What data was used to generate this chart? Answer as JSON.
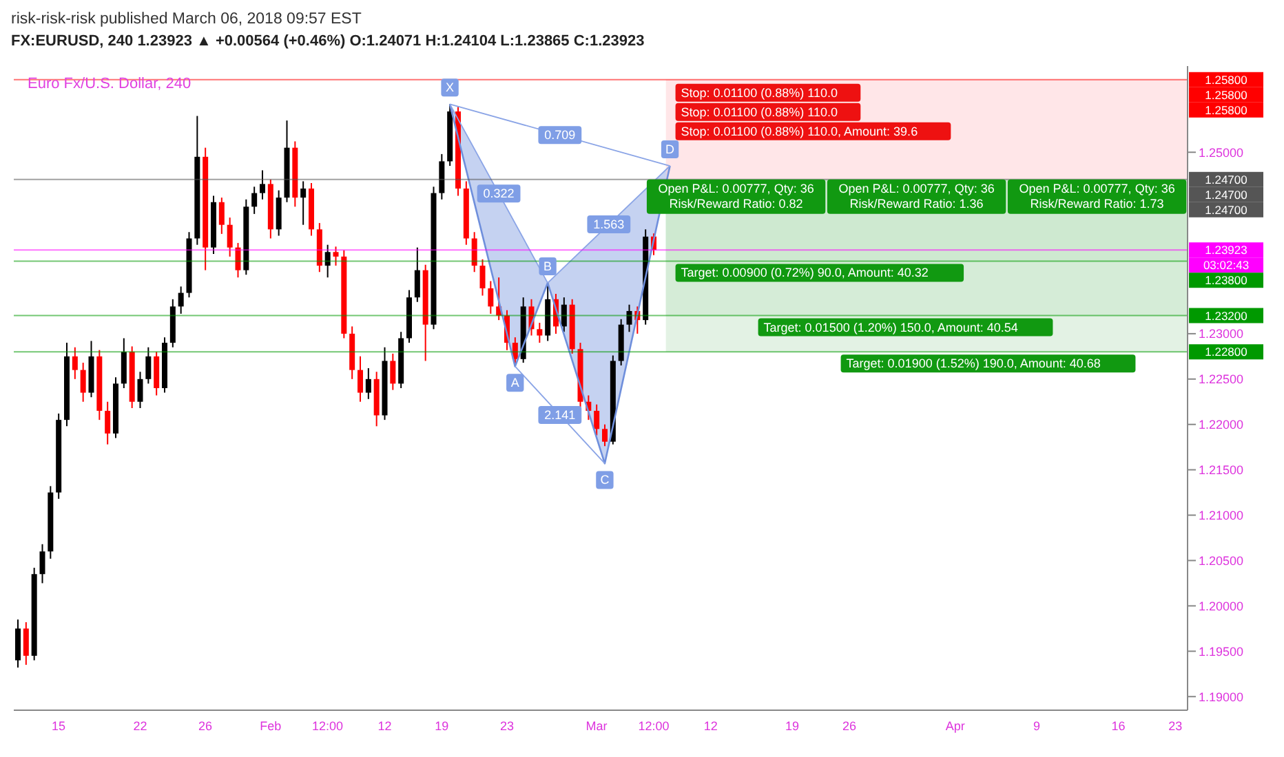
{
  "chart_data": {
    "type": "candlestick",
    "title": "risk-risk-risk published March 06, 2018 09:57 EST",
    "subtitle": "FX:EURUSD, 240 1.23923 ▲ +0.00564 (+0.46%) O:1.24071 H:1.24104 L:1.23865 C:1.23923",
    "categories": [
      null,
      null,
      null,
      null,
      null,
      "15",
      null,
      null,
      null,
      null,
      null,
      null,
      null,
      null,
      null,
      "22",
      null,
      null,
      null,
      null,
      null,
      null,
      null,
      "26",
      null,
      null,
      null,
      null,
      null,
      null,
      null,
      "Feb",
      null,
      null,
      null,
      null,
      null,
      null,
      "12:00",
      null,
      null,
      null,
      null,
      null,
      null,
      "12",
      null,
      null,
      null,
      null,
      null,
      null,
      "19",
      null,
      null,
      null,
      null,
      null,
      null,
      null,
      "23",
      null,
      null,
      null,
      null,
      null,
      null,
      null,
      null,
      null,
      null,
      "Mar",
      null,
      null,
      null,
      null,
      null,
      null,
      "12:00",
      null,
      null,
      null,
      null,
      null,
      null,
      "12",
      null,
      null,
      null,
      null,
      null,
      null,
      null,
      null,
      null,
      "19",
      null,
      null,
      null,
      null,
      null,
      null,
      "26",
      null,
      null,
      null,
      null,
      null,
      null,
      null,
      null,
      null,
      null,
      null,
      null,
      "Apr",
      null,
      null,
      null,
      null,
      null,
      null,
      null,
      null,
      null,
      "9",
      null,
      null,
      null,
      null,
      null,
      null,
      null,
      null,
      null,
      "16",
      null,
      null,
      null,
      null,
      null,
      null,
      "23",
      null
    ],
    "ohlc": [
      [
        1.194,
        1.1985,
        1.1932,
        1.1975
      ],
      [
        1.1975,
        1.1982,
        1.1935,
        1.1945
      ],
      [
        1.1945,
        1.2042,
        1.194,
        1.2035
      ],
      [
        1.2035,
        1.2068,
        1.2025,
        1.206
      ],
      [
        1.206,
        1.2132,
        1.2052,
        1.2125
      ],
      [
        1.2125,
        1.2212,
        1.2118,
        1.2205
      ],
      [
        1.2205,
        1.229,
        1.2198,
        1.2275
      ],
      [
        1.2275,
        1.2285,
        1.225,
        1.226
      ],
      [
        1.226,
        1.2268,
        1.2225,
        1.2235
      ],
      [
        1.2235,
        1.2292,
        1.223,
        1.2275
      ],
      [
        1.2275,
        1.2282,
        1.2205,
        1.2215
      ],
      [
        1.2215,
        1.2225,
        1.2178,
        1.219
      ],
      [
        1.219,
        1.2252,
        1.2185,
        1.2245
      ],
      [
        1.2245,
        1.2295,
        1.224,
        1.228
      ],
      [
        1.228,
        1.2286,
        1.2218,
        1.2225
      ],
      [
        1.2225,
        1.2258,
        1.2218,
        1.225
      ],
      [
        1.225,
        1.2285,
        1.2245,
        1.2275
      ],
      [
        1.2275,
        1.228,
        1.2232,
        1.224
      ],
      [
        1.224,
        1.2296,
        1.2235,
        1.229
      ],
      [
        1.229,
        1.2338,
        1.2285,
        1.233
      ],
      [
        1.233,
        1.2352,
        1.2322,
        1.2345
      ],
      [
        1.2345,
        1.2412,
        1.234,
        1.2405
      ],
      [
        1.2405,
        1.254,
        1.2398,
        1.2495
      ],
      [
        1.2495,
        1.2505,
        1.237,
        1.2395
      ],
      [
        1.2395,
        1.2452,
        1.2388,
        1.2445
      ],
      [
        1.2445,
        1.245,
        1.241,
        1.242
      ],
      [
        1.242,
        1.2428,
        1.2385,
        1.2395
      ],
      [
        1.2395,
        1.24,
        1.2362,
        1.237
      ],
      [
        1.237,
        1.2448,
        1.2365,
        1.244
      ],
      [
        1.244,
        1.2462,
        1.2432,
        1.2455
      ],
      [
        1.2455,
        1.248,
        1.2448,
        1.2465
      ],
      [
        1.2465,
        1.247,
        1.2405,
        1.2415
      ],
      [
        1.2415,
        1.2458,
        1.2408,
        1.245
      ],
      [
        1.245,
        1.2535,
        1.2445,
        1.2505
      ],
      [
        1.2505,
        1.2512,
        1.244,
        1.245
      ],
      [
        1.245,
        1.2468,
        1.242,
        1.246
      ],
      [
        1.246,
        1.2466,
        1.2408,
        1.2415
      ],
      [
        1.2415,
        1.2422,
        1.2368,
        1.2375
      ],
      [
        1.2375,
        1.2398,
        1.2362,
        1.239
      ],
      [
        1.239,
        1.2396,
        1.2375,
        1.2385
      ],
      [
        1.2385,
        1.2392,
        1.2295,
        1.23
      ],
      [
        1.23,
        1.2308,
        1.225,
        1.226
      ],
      [
        1.226,
        1.2275,
        1.2225,
        1.2235
      ],
      [
        1.2235,
        1.2262,
        1.2228,
        1.225
      ],
      [
        1.225,
        1.2258,
        1.2198,
        1.221
      ],
      [
        1.221,
        1.2285,
        1.2205,
        1.227
      ],
      [
        1.227,
        1.2278,
        1.2238,
        1.2245
      ],
      [
        1.2245,
        1.2302,
        1.224,
        1.2295
      ],
      [
        1.2295,
        1.2348,
        1.229,
        1.234
      ],
      [
        1.234,
        1.2395,
        1.2335,
        1.237
      ],
      [
        1.237,
        1.2376,
        1.227,
        1.231
      ],
      [
        1.231,
        1.2462,
        1.2305,
        1.2455
      ],
      [
        1.2455,
        1.2498,
        1.2448,
        1.249
      ],
      [
        1.249,
        1.2553,
        1.2485,
        1.2545
      ],
      [
        1.2545,
        1.255,
        1.2452,
        1.246
      ],
      [
        1.246,
        1.2468,
        1.2398,
        1.2405
      ],
      [
        1.2405,
        1.2412,
        1.2368,
        1.2375
      ],
      [
        1.2375,
        1.2382,
        1.2342,
        1.235
      ],
      [
        1.235,
        1.2358,
        1.2322,
        1.233
      ],
      [
        1.233,
        1.2362,
        1.2315,
        1.232
      ],
      [
        1.232,
        1.2326,
        1.2282,
        1.229
      ],
      [
        1.229,
        1.2296,
        1.2264,
        1.2272
      ],
      [
        1.2272,
        1.234,
        1.2268,
        1.233
      ],
      [
        1.233,
        1.2338,
        1.2298,
        1.2305
      ],
      [
        1.2305,
        1.2312,
        1.229,
        1.2298
      ],
      [
        1.2298,
        1.2356,
        1.2292,
        1.2338
      ],
      [
        1.2338,
        1.2344,
        1.23,
        1.2308
      ],
      [
        1.2308,
        1.234,
        1.2302,
        1.2332
      ],
      [
        1.2332,
        1.2338,
        1.2278,
        1.2283
      ],
      [
        1.2283,
        1.229,
        1.2218,
        1.2225
      ],
      [
        1.2225,
        1.2232,
        1.2205,
        1.2215
      ],
      [
        1.2215,
        1.2222,
        1.2188,
        1.2195
      ],
      [
        1.2195,
        1.22,
        1.2176,
        1.2181
      ],
      [
        1.2181,
        1.2276,
        1.2178,
        1.227
      ],
      [
        1.227,
        1.2316,
        1.2265,
        1.231
      ],
      [
        1.231,
        1.2332,
        1.2302,
        1.2325
      ],
      [
        1.2325,
        1.233,
        1.23,
        1.2315
      ],
      [
        1.2315,
        1.2415,
        1.231,
        1.2407
      ],
      [
        1.24071,
        1.24104,
        1.23865,
        1.23923
      ],
      null,
      null,
      null,
      null,
      null,
      null,
      null,
      null,
      null,
      null,
      null,
      null,
      null,
      null,
      null,
      null,
      null,
      null,
      null,
      null,
      null,
      null,
      null,
      null,
      null,
      null,
      null,
      null,
      null,
      null,
      null,
      null,
      null,
      null,
      null,
      null,
      null,
      null,
      null,
      null,
      null,
      null,
      null,
      null,
      null,
      null,
      null,
      null,
      null,
      null,
      null,
      null,
      null,
      null,
      null,
      null,
      null,
      null,
      null,
      null,
      null,
      null,
      null,
      null,
      null
    ],
    "series": [
      {
        "type": "line",
        "color": "#6f8fdc",
        "values": [
          null,
          null,
          null,
          null,
          null,
          null,
          null,
          null,
          null,
          null,
          null,
          null,
          null,
          null,
          null,
          null,
          null,
          null,
          null,
          null,
          null,
          null,
          null,
          null,
          null,
          null,
          null,
          null,
          null,
          null,
          null,
          null,
          null,
          null,
          null,
          null,
          null,
          null,
          null,
          null,
          null,
          null,
          null,
          null,
          null,
          null,
          null,
          null,
          null,
          null,
          null,
          null,
          null,
          1.2553,
          null,
          null,
          null,
          null,
          null,
          null,
          null,
          1.2264,
          null,
          null,
          null,
          1.2356,
          null,
          null,
          null,
          null,
          null,
          null,
          1.2157,
          null,
          null,
          null,
          null,
          null,
          null,
          null,
          1.2485,
          null,
          null,
          null,
          null,
          null,
          null,
          null,
          null,
          null,
          null,
          null,
          null,
          null,
          null,
          null,
          null,
          null,
          null,
          null,
          null,
          null,
          null,
          null,
          null,
          null,
          null,
          null,
          null,
          null,
          null,
          null,
          null,
          null,
          null,
          null,
          null,
          null,
          null,
          null,
          null,
          null,
          null,
          null,
          null,
          null,
          null,
          null,
          null,
          null,
          null,
          null,
          null,
          null,
          null,
          null,
          null,
          null,
          null,
          null,
          null,
          null,
          null,
          null
        ]
      },
      {
        "type": "line",
        "color": "#8aa4e6",
        "values": [
          null,
          null,
          null,
          null,
          null,
          null,
          null,
          null,
          null,
          null,
          null,
          null,
          null,
          null,
          null,
          null,
          null,
          null,
          null,
          null,
          null,
          null,
          null,
          null,
          null,
          null,
          null,
          null,
          null,
          null,
          null,
          null,
          null,
          null,
          null,
          null,
          null,
          null,
          null,
          null,
          null,
          null,
          null,
          null,
          null,
          null,
          null,
          null,
          null,
          null,
          null,
          null,
          null,
          1.2553,
          null,
          null,
          null,
          null,
          null,
          null,
          null,
          null,
          null,
          null,
          null,
          1.2356,
          null,
          null,
          null,
          null,
          null,
          null,
          null,
          null,
          null,
          null,
          null,
          null,
          null,
          null,
          null,
          null,
          null,
          null,
          null,
          null,
          null,
          null,
          null,
          null,
          null,
          null,
          null,
          null,
          null,
          null,
          null,
          null,
          null,
          null,
          null,
          null,
          null,
          null,
          null,
          null,
          null,
          null,
          null,
          null,
          null,
          null,
          null,
          null,
          null,
          null,
          null,
          null,
          null,
          null,
          null,
          null,
          null,
          null,
          null,
          null,
          null,
          null,
          null,
          null,
          null,
          null,
          null,
          null,
          null,
          null,
          null,
          null,
          null,
          null,
          null,
          null,
          null,
          null
        ]
      },
      {
        "type": "line",
        "color": "#8aa4e6",
        "values": [
          null,
          null,
          null,
          null,
          null,
          null,
          null,
          null,
          null,
          null,
          null,
          null,
          null,
          null,
          null,
          null,
          null,
          null,
          null,
          null,
          null,
          null,
          null,
          null,
          null,
          null,
          null,
          null,
          null,
          null,
          null,
          null,
          null,
          null,
          null,
          null,
          null,
          null,
          null,
          null,
          null,
          null,
          null,
          null,
          null,
          null,
          null,
          null,
          null,
          null,
          null,
          null,
          null,
          null,
          null,
          null,
          null,
          null,
          null,
          null,
          null,
          1.2264,
          null,
          null,
          null,
          null,
          null,
          null,
          null,
          null,
          null,
          null,
          1.2157,
          null,
          null,
          null,
          null,
          null,
          null,
          null,
          null,
          null,
          null,
          null,
          null,
          null,
          null,
          null,
          null,
          null,
          null,
          null,
          null,
          null,
          null,
          null,
          null,
          null,
          null,
          null,
          null,
          null,
          null,
          null,
          null,
          null,
          null,
          null,
          null,
          null,
          null,
          null,
          null,
          null,
          null,
          null,
          null,
          null,
          null,
          null,
          null,
          null,
          null,
          null,
          null,
          null,
          null,
          null,
          null,
          null,
          null,
          null,
          null,
          null,
          null,
          null,
          null,
          null,
          null,
          null,
          null,
          null,
          null,
          null
        ]
      },
      {
        "type": "line",
        "color": "#8aa4e6",
        "values": [
          null,
          null,
          null,
          null,
          null,
          null,
          null,
          null,
          null,
          null,
          null,
          null,
          null,
          null,
          null,
          null,
          null,
          null,
          null,
          null,
          null,
          null,
          null,
          null,
          null,
          null,
          null,
          null,
          null,
          null,
          null,
          null,
          null,
          null,
          null,
          null,
          null,
          null,
          null,
          null,
          null,
          null,
          null,
          null,
          null,
          null,
          null,
          null,
          null,
          null,
          null,
          null,
          null,
          null,
          null,
          null,
          null,
          null,
          null,
          null,
          null,
          null,
          null,
          null,
          null,
          1.2356,
          null,
          null,
          null,
          null,
          null,
          null,
          null,
          null,
          null,
          null,
          null,
          null,
          null,
          null,
          1.2485,
          null,
          null,
          null,
          null,
          null,
          null,
          null,
          null,
          null,
          null,
          null,
          null,
          null,
          null,
          null,
          null,
          null,
          null,
          null,
          null,
          null,
          null,
          null,
          null,
          null,
          null,
          null,
          null,
          null,
          null,
          null,
          null,
          null,
          null,
          null,
          null,
          null,
          null,
          null,
          null,
          null,
          null,
          null,
          null,
          null,
          null,
          null,
          null,
          null,
          null,
          null,
          null,
          null,
          null,
          null,
          null,
          null,
          null,
          null,
          null,
          null,
          null,
          null
        ]
      },
      {
        "type": "line",
        "color": "#8aa4e6",
        "values": [
          null,
          null,
          null,
          null,
          null,
          null,
          null,
          null,
          null,
          null,
          null,
          null,
          null,
          null,
          null,
          null,
          null,
          null,
          null,
          null,
          null,
          null,
          null,
          null,
          null,
          null,
          null,
          null,
          null,
          null,
          null,
          null,
          null,
          null,
          null,
          null,
          null,
          null,
          null,
          null,
          null,
          null,
          null,
          null,
          null,
          null,
          null,
          null,
          null,
          null,
          null,
          null,
          null,
          1.2553,
          null,
          null,
          null,
          null,
          null,
          null,
          null,
          null,
          null,
          null,
          null,
          null,
          null,
          null,
          null,
          null,
          null,
          null,
          null,
          null,
          null,
          null,
          null,
          null,
          null,
          null,
          1.2485,
          null,
          null,
          null,
          null,
          null,
          null,
          null,
          null,
          null,
          null,
          null,
          null,
          null,
          null,
          null,
          null,
          null,
          null,
          null,
          null,
          null,
          null,
          null,
          null,
          null,
          null,
          null,
          null,
          null,
          null,
          null,
          null,
          null,
          null,
          null,
          null,
          null,
          null,
          null,
          null,
          null,
          null,
          null,
          null,
          null,
          null,
          null,
          null,
          null,
          null,
          null,
          null,
          null,
          null,
          null,
          null,
          null,
          null,
          null,
          null,
          null,
          null,
          null
        ]
      }
    ],
    "ylim": [
      1.1885,
      1.2595
    ],
    "yticks": [
      {
        "value": 1.19,
        "label": "1.19000"
      },
      {
        "value": 1.195,
        "label": "1.19500"
      },
      {
        "value": 1.2,
        "label": "1.20000"
      },
      {
        "value": 1.205,
        "label": "1.20500"
      },
      {
        "value": 1.21,
        "label": "1.21000"
      },
      {
        "value": 1.215,
        "label": "1.21500"
      },
      {
        "value": 1.22,
        "label": "1.22000"
      },
      {
        "value": 1.225,
        "label": "1.22500"
      },
      {
        "value": 1.23,
        "label": "1.23000"
      },
      {
        "value": 1.25,
        "label": "1.25000"
      }
    ],
    "ref_lines": [
      {
        "axis": "y",
        "value": 1.258,
        "label": "1.25800\n1.25800\n1.25800",
        "color": "#ff0000"
      },
      {
        "axis": "y",
        "value": 1.247,
        "label": "1.24700\n1.24700\n1.24700",
        "color": "#555555"
      },
      {
        "axis": "y",
        "value": 1.23923,
        "label": "1.23923\n03:02:43",
        "color": "#ff00ff"
      },
      {
        "axis": "y",
        "value": 1.238,
        "label": "1.23800",
        "color": "#009900"
      },
      {
        "axis": "y",
        "value": 1.232,
        "label": "1.23200",
        "color": "#009900"
      },
      {
        "axis": "y",
        "value": 1.228,
        "label": "1.22800",
        "color": "#009900"
      }
    ],
    "bands": [
      {
        "axis": "y",
        "from": 1.247,
        "to": 1.258,
        "label": "Stop: 0.01100 (0.88%) 110.0\nStop: 0.01100 (0.88%) 110.0\nStop: 0.01100 (0.88%) 110.0, Amount: 39.6",
        "color": "#ffcdd2"
      },
      {
        "axis": "y",
        "from": 1.238,
        "to": 1.247,
        "label": "Target: 0.00900 (0.72%) 90.0, Amount: 40.32",
        "color": "#c8e6c9"
      },
      {
        "axis": "y",
        "from": 1.232,
        "to": 1.247,
        "label": "Target: 0.01500 (1.20%) 150.0, Amount: 40.54",
        "color": "#c8e6c9"
      },
      {
        "axis": "y",
        "from": 1.228,
        "to": 1.247,
        "label": "Target: 0.01900 (1.52%) 190.0, Amount: 40.68",
        "color": "#c8e6c9"
      }
    ],
    "annotations": [
      "Euro Fx/U.S. Dollar, 240",
      {
        "text": "X",
        "y": 1.2553
      },
      {
        "text": "A",
        "y": 1.2264
      },
      {
        "text": "B",
        "y": 1.2356
      },
      {
        "text": "C",
        "y": 1.2157
      },
      {
        "text": "D",
        "y": 1.2485
      },
      {
        "text": "0.709",
        "y": 1.2519
      },
      {
        "text": "0.322",
        "y": 1.24545
      },
      {
        "text": "1.563",
        "y": 1.24205
      },
      {
        "text": "2.141",
        "y": 1.22105
      },
      {
        "text": "Open P&L: 0.00777, Qty: 36\nRisk/Reward Ratio: 0.82",
        "y": 1.247
      },
      {
        "text": "Open P&L: 0.00777, Qty: 36\nRisk/Reward Ratio: 1.36",
        "y": 1.247
      },
      {
        "text": "Open P&L: 0.00777, Qty: 36\nRisk/Reward Ratio: 1.73",
        "y": 1.247
      }
    ]
  }
}
